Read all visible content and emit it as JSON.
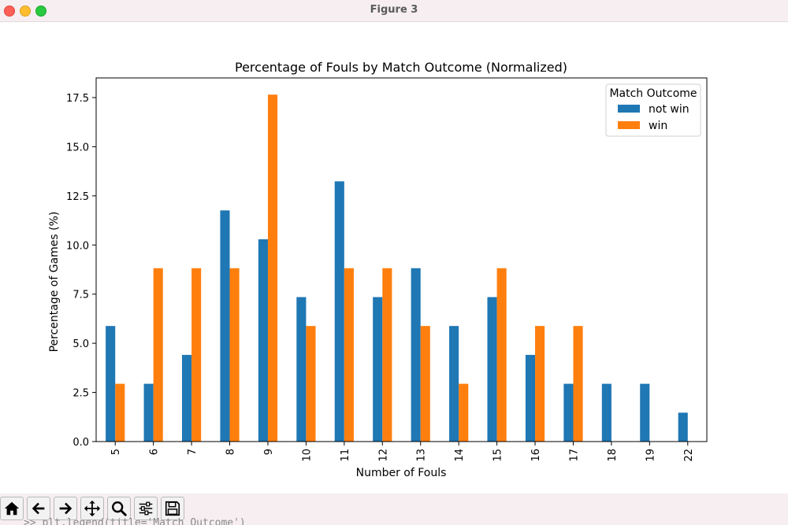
{
  "window": {
    "title": "Figure 3"
  },
  "toolbar": {
    "buttons": [
      {
        "name": "home-icon"
      },
      {
        "name": "back-icon"
      },
      {
        "name": "forward-icon"
      },
      {
        "name": "pan-icon"
      },
      {
        "name": "zoom-icon"
      },
      {
        "name": "configure-icon"
      },
      {
        "name": "save-icon"
      }
    ]
  },
  "terminal_text": ">> plt.legend(title='Match Outcome')",
  "chart_data": {
    "type": "bar",
    "title": "Percentage of Fouls by Match Outcome (Normalized)",
    "xlabel": "Number of Fouls",
    "ylabel": "Percentage of Games (%)",
    "categories": [
      "5",
      "6",
      "7",
      "8",
      "9",
      "10",
      "11",
      "12",
      "13",
      "14",
      "15",
      "16",
      "17",
      "18",
      "19",
      "22"
    ],
    "series": [
      {
        "name": "not win",
        "color": "#1f77b4",
        "values": [
          5.88,
          2.94,
          4.41,
          11.76,
          10.29,
          7.35,
          13.24,
          7.35,
          8.82,
          5.88,
          7.35,
          4.41,
          2.94,
          2.94,
          2.94,
          1.47
        ]
      },
      {
        "name": "win",
        "color": "#ff7f0e",
        "values": [
          2.94,
          8.82,
          8.82,
          8.82,
          17.65,
          5.88,
          8.82,
          8.82,
          5.88,
          2.94,
          8.82,
          5.88,
          5.88,
          0,
          0,
          0
        ]
      }
    ],
    "yticks": [
      "0.0",
      "2.5",
      "5.0",
      "7.5",
      "10.0",
      "12.5",
      "15.0",
      "17.5"
    ],
    "ylim": [
      0,
      18.5
    ],
    "legend": {
      "title": "Match Outcome",
      "placement": "upper right"
    },
    "grid": false
  }
}
